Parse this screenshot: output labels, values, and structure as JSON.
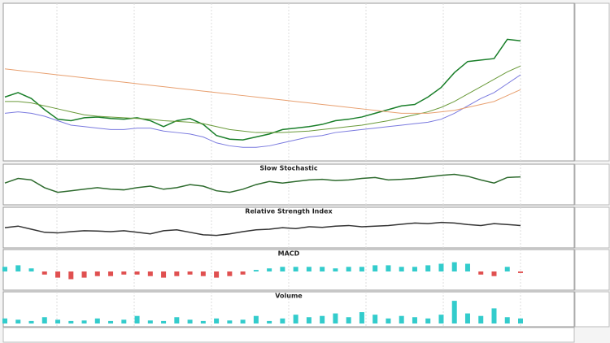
{
  "chart_data": [
    {
      "type": "line",
      "ylim": [
        0,
        100
      ],
      "series": [
        {
          "color": "#1a7f2a",
          "values": [
            41,
            44,
            40,
            32.5,
            26,
            25,
            27,
            27.5,
            26.5,
            26,
            27,
            25,
            21,
            25,
            26.5,
            22.5,
            15,
            12.5,
            12,
            14,
            16,
            19,
            20,
            21,
            22.5,
            25,
            26,
            27.5,
            30,
            32.5,
            35,
            36,
            41,
            47.5,
            57.5,
            65,
            66,
            67,
            80,
            79
          ]
        },
        {
          "color": "#6a9a3a",
          "values": [
            38,
            38,
            37,
            35,
            33,
            31,
            29,
            28,
            27.5,
            27,
            26.5,
            26,
            25,
            24.5,
            24,
            23,
            21,
            19,
            18,
            17,
            17,
            17,
            17.5,
            18,
            19,
            20,
            21,
            22,
            23.5,
            25,
            27,
            29,
            31,
            34,
            38,
            43,
            48,
            53,
            58,
            62
          ]
        },
        {
          "color": "#7a7adf",
          "values": [
            30,
            31,
            30,
            28,
            25,
            22,
            21,
            20,
            19,
            19,
            20,
            20,
            18,
            17,
            16,
            14,
            10,
            8,
            7,
            7,
            8,
            10,
            12,
            14,
            15,
            17,
            18,
            19,
            20,
            21,
            22,
            23,
            24,
            26,
            30,
            35,
            40,
            44,
            50,
            56
          ]
        },
        {
          "color": "#e8a070",
          "values": [
            60,
            59,
            58,
            57,
            56,
            55,
            54,
            53,
            52,
            51,
            50,
            49,
            48,
            47,
            46,
            45,
            44,
            43,
            42,
            41,
            40,
            39,
            38,
            37,
            36,
            35,
            34,
            33,
            32,
            31,
            30,
            30,
            30,
            31,
            32,
            34,
            36,
            38,
            42,
            46
          ]
        }
      ]
    },
    {
      "type": "line",
      "title": "Slow Stochastic",
      "ylim": [
        0,
        100
      ],
      "series": [
        {
          "color": "#2e6b2e",
          "values": [
            60,
            75,
            70,
            45,
            30,
            35,
            40,
            45,
            40,
            38,
            45,
            50,
            40,
            45,
            55,
            50,
            35,
            30,
            40,
            55,
            65,
            60,
            65,
            70,
            72,
            68,
            70,
            75,
            78,
            70,
            72,
            75,
            80,
            85,
            88,
            82,
            70,
            60,
            78,
            80
          ]
        }
      ]
    },
    {
      "type": "line",
      "title": "Relative Strength Index",
      "ylim": [
        0,
        100
      ],
      "series": [
        {
          "color": "#333333",
          "values": [
            55,
            60,
            50,
            40,
            38,
            42,
            45,
            44,
            42,
            45,
            40,
            35,
            45,
            48,
            40,
            32,
            30,
            35,
            42,
            48,
            50,
            55,
            52,
            58,
            56,
            60,
            62,
            58,
            60,
            62,
            66,
            70,
            68,
            72,
            70,
            65,
            62,
            68,
            65,
            62
          ]
        }
      ]
    },
    {
      "type": "bar",
      "title": "MACD",
      "ylim": [
        -1,
        1
      ],
      "color": "#33cccc",
      "negative_color": "#e05050",
      "values": [
        0.3,
        0.4,
        0.2,
        -0.2,
        -0.4,
        -0.5,
        -0.4,
        -0.3,
        -0.3,
        -0.2,
        -0.2,
        -0.3,
        -0.4,
        -0.3,
        -0.2,
        -0.3,
        -0.4,
        -0.3,
        -0.2,
        0.1,
        0.2,
        0.3,
        0.3,
        0.3,
        0.3,
        0.2,
        0.3,
        0.3,
        0.4,
        0.4,
        0.3,
        0.3,
        0.4,
        0.5,
        0.6,
        0.5,
        -0.2,
        -0.3,
        0.3,
        -0.1
      ]
    },
    {
      "type": "bar",
      "title": "Volume",
      "ylim": [
        0,
        100
      ],
      "color": "#33cccc",
      "negative_color": "#e0a030",
      "values": [
        20,
        15,
        10,
        25,
        15,
        10,
        12,
        20,
        10,
        15,
        30,
        12,
        10,
        25,
        15,
        10,
        20,
        12,
        15,
        30,
        10,
        20,
        35,
        25,
        30,
        40,
        25,
        45,
        35,
        20,
        30,
        25,
        20,
        35,
        90,
        40,
        30,
        60,
        25,
        20
      ]
    }
  ]
}
